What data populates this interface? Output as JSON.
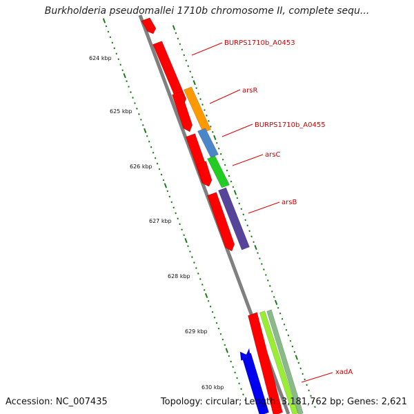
{
  "title": "Burkholderia pseudomallei 1710b chromosome II, complete sequ...",
  "footer": {
    "accession": "Accession: NC_007435",
    "summary": "Topology: circular; Length: 3,181,762 bp; Genes: 2,621"
  },
  "axis": {
    "tick_labels": [
      "624 kbp",
      "625 kbp",
      "626 kbp",
      "627 kbp",
      "628 kbp",
      "629 kbp",
      "630 kbp"
    ]
  },
  "gene_labels": [
    "BURPS1710b_A0453",
    "arsR",
    "BURPS1710b_A0455",
    "arsC",
    "arsB",
    "xadA"
  ],
  "colors": {
    "backbone": "#808080",
    "forward_gene": "#ff0000",
    "label_leader": "#dd0000",
    "label_text": "#cc0000",
    "tick": "#1a7a1a",
    "arsR": "#ff9900",
    "BURPS1710b_A0455": "#4a86c8",
    "arsC": "#22cc22",
    "arsB": "#554499",
    "reverse_gene": "#0000ee",
    "xadA_1": "#99ee33",
    "xadA_2": "#88bb88"
  }
}
